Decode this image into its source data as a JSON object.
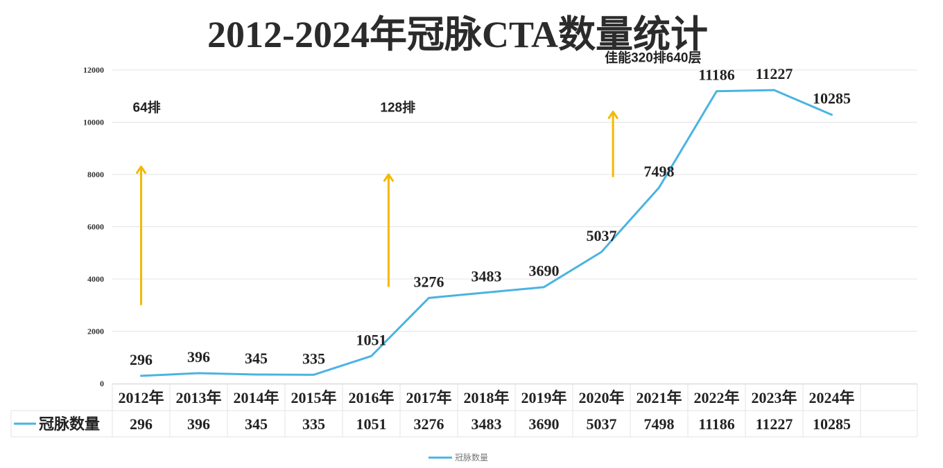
{
  "chart_data": {
    "type": "line",
    "title": "2012-2024年冠脉CTA数量统计",
    "xlabel": "",
    "ylabel": "",
    "ylim": [
      0,
      12000
    ],
    "y_ticks": [
      "0",
      "2000",
      "4000",
      "6000",
      "8000",
      "10000",
      "12000"
    ],
    "grid": true,
    "legend": "bottom",
    "categories": [
      "2012年",
      "2013年",
      "2014年",
      "2015年",
      "2016年",
      "2017年",
      "2018年",
      "2019年",
      "2020年",
      "2021年",
      "2022年",
      "2023年",
      "2024年"
    ],
    "series": [
      {
        "name": "冠脉数量",
        "color": "#4ab3e2",
        "values": [
          296,
          396,
          345,
          335,
          1051,
          3276,
          3483,
          3690,
          5037,
          7498,
          11186,
          11227,
          10285
        ],
        "labels": [
          "296",
          "396",
          "345",
          "335",
          "1051",
          "3276",
          "3483",
          "3690",
          "5037",
          "7498",
          "11186",
          "11227",
          "10285"
        ]
      }
    ],
    "annotations": [
      {
        "text": "64排",
        "category_index": 0,
        "arrow_from": 3000,
        "arrow_to": 8300,
        "text_at": 10400
      },
      {
        "text": "128排",
        "category_index": 4.3,
        "arrow_from": 3700,
        "arrow_to": 8000,
        "text_at": 10400
      },
      {
        "text": "佳能320排640层",
        "category_index": 8.2,
        "arrow_from": 7900,
        "arrow_to": 10400,
        "text_at": 12300
      }
    ],
    "arrow_color": "#f5b800",
    "table": {
      "series_label": "冠脉数量"
    },
    "legend_label": "冠脉数量"
  }
}
